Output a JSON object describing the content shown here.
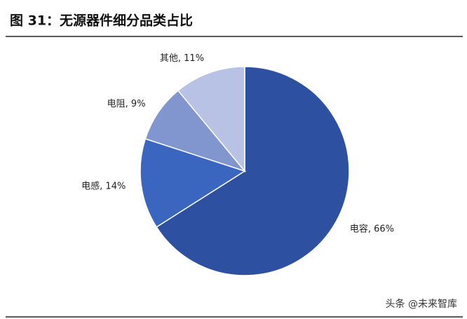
{
  "title": "图 31：无源器件细分品类占比",
  "watermark": "头条 @未来智库",
  "chart_data": {
    "type": "pie",
    "categories": [
      "电容",
      "电感",
      "电阻",
      "其他"
    ],
    "values": [
      66,
      14,
      9,
      11
    ],
    "value_labels": [
      ", 66%",
      ", 14%",
      ", 9%",
      ", 11%"
    ],
    "colors": [
      "#2d50a0",
      "#3a66c0",
      "#8196cf",
      "#b8c2e4"
    ],
    "start_angle": 0,
    "direction": "clockwise"
  }
}
